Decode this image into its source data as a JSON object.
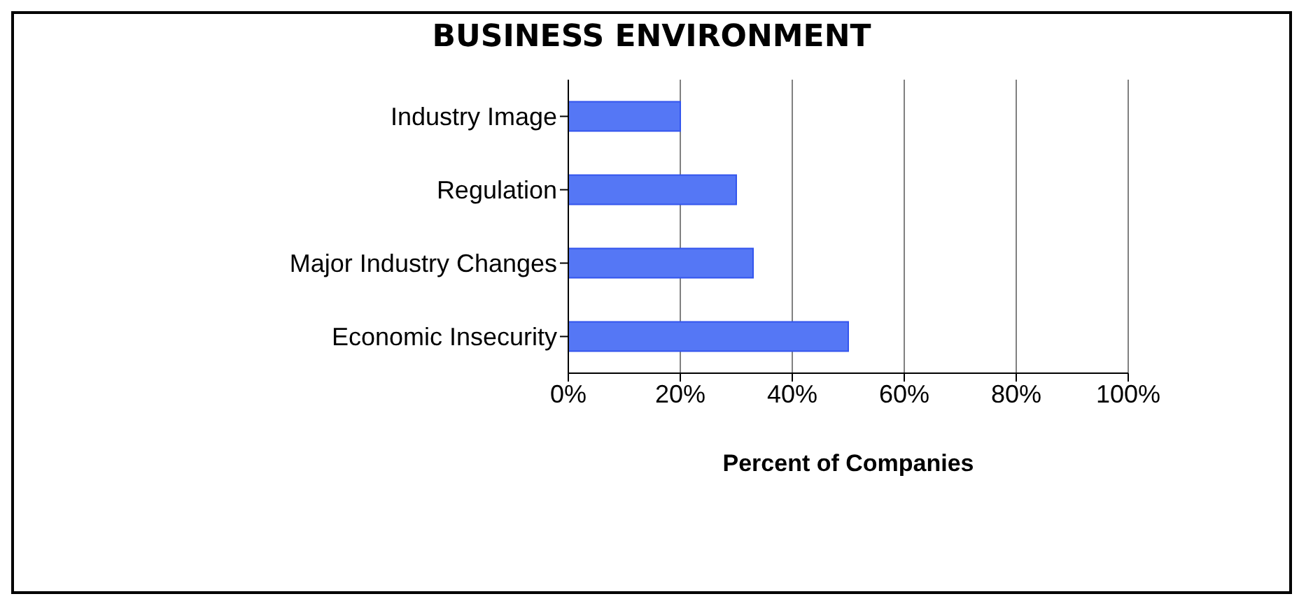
{
  "chart_data": {
    "type": "bar",
    "orientation": "horizontal",
    "title": "BUSINESS ENVIRONMENT",
    "xlabel": "Percent of Companies",
    "categories": [
      "Industry Image",
      "Regulation",
      "Major Industry Changes",
      "Economic Insecurity"
    ],
    "values": [
      20,
      30,
      33,
      50
    ],
    "color": "#5577f5",
    "xlim": [
      0,
      100
    ],
    "xticks": [
      {
        "value": 0,
        "label": "0%"
      },
      {
        "value": 20,
        "label": "20%"
      },
      {
        "value": 40,
        "label": "40%"
      },
      {
        "value": 60,
        "label": "60%"
      },
      {
        "value": 80,
        "label": "80%"
      },
      {
        "value": 100,
        "label": "100%"
      }
    ],
    "grid": "x"
  }
}
